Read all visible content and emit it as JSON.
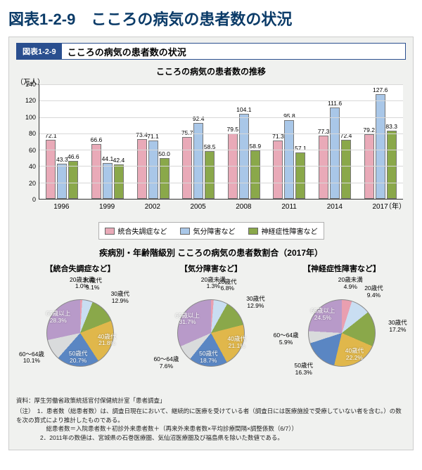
{
  "page_title": "図表1-2-9　こころの病気の患者数の状況",
  "subtitle_tag": "図表1-2-9",
  "subtitle_text": "こころの病気の患者数の状況",
  "bar_chart": {
    "type": "bar",
    "title": "こころの病気の患者数の推移",
    "y_unit": "（万人）",
    "x_unit": "（年）",
    "ylim": [
      0,
      140
    ],
    "ytick_step": 20,
    "categories": [
      "1996",
      "1999",
      "2002",
      "2005",
      "2008",
      "2011",
      "2014",
      "2017"
    ],
    "series": [
      {
        "name": "統合失調症など",
        "color": "#e9aab8",
        "values": [
          72.1,
          66.6,
          73.4,
          75.7,
          79.5,
          71.3,
          77.3,
          79.2
        ]
      },
      {
        "name": "気分障害など",
        "color": "#a9c7e8",
        "values": [
          43.3,
          44.1,
          71.1,
          92.4,
          104.1,
          95.8,
          111.6,
          127.6
        ]
      },
      {
        "name": "神経症性障害など",
        "color": "#8aa84a",
        "values": [
          46.6,
          42.4,
          50.0,
          58.5,
          58.9,
          57.1,
          72.4,
          83.3
        ]
      }
    ],
    "grid_color": "#d8d8d8",
    "background_color": "#ffffff"
  },
  "legend_labels": [
    "統合失調症など",
    "気分障害など",
    "神経症性障害など"
  ],
  "pies_title": "疾病別・年齢階級別 こころの病気の患者数割合（2017年）",
  "pie_colors": {
    "20歳未満": "#e99fb0",
    "20歳代": "#c9def2",
    "30歳代": "#8aa84a",
    "40歳代": "#e0b74b",
    "50歳代": "#5a86c3",
    "60～64歳": "#d9dbdc",
    "65歳以上": "#b89ac9"
  },
  "pies": [
    {
      "title": "【統合失調症など】",
      "slices": [
        {
          "label": "20歳未満",
          "pct": 1.0
        },
        {
          "label": "20歳代",
          "pct": 5.1
        },
        {
          "label": "30歳代",
          "pct": 12.9
        },
        {
          "label": "40歳代",
          "pct": 21.8
        },
        {
          "label": "50歳代",
          "pct": 20.7
        },
        {
          "label": "60～64歳",
          "pct": 10.1
        },
        {
          "label": "65歳以上",
          "pct": 28.3
        }
      ]
    },
    {
      "title": "【気分障害など】",
      "slices": [
        {
          "label": "20歳未満",
          "pct": 1.3
        },
        {
          "label": "20歳代",
          "pct": 6.8
        },
        {
          "label": "30歳代",
          "pct": 12.9
        },
        {
          "label": "40歳代",
          "pct": 21.1
        },
        {
          "label": "50歳代",
          "pct": 18.7
        },
        {
          "label": "60～64歳",
          "pct": 7.6
        },
        {
          "label": "65歳以上",
          "pct": 31.7
        }
      ]
    },
    {
      "title": "【神経症性障害など】",
      "slices": [
        {
          "label": "20歳未満",
          "pct": 4.9
        },
        {
          "label": "20歳代",
          "pct": 9.4
        },
        {
          "label": "30歳代",
          "pct": 17.2
        },
        {
          "label": "40歳代",
          "pct": 22.2
        },
        {
          "label": "50歳代",
          "pct": 16.3
        },
        {
          "label": "60～64歳",
          "pct": 5.9
        },
        {
          "label": "65歳以上",
          "pct": 24.5
        }
      ]
    }
  ],
  "notes": {
    "source": "資料：厚生労働省政策統括官付保健統計室「患者調査」",
    "line1": "（注）　1．患者数（総患者数）は、調査日現在において、継続的に医療を受けている者（調査日には医療施設で受療していない者を含む。）の数を次の算式により推計したものである。",
    "line2": "　　　　　総患者数＝入院患者数＋初診外来患者数＋（再来外来患者数×平均診療間隔×調整係数（6/7））",
    "line3": "　　　　2．2011年の数値は、宮城県の石巻医療圏、気仙沼医療圏及び福島県を除いた数値である。"
  }
}
